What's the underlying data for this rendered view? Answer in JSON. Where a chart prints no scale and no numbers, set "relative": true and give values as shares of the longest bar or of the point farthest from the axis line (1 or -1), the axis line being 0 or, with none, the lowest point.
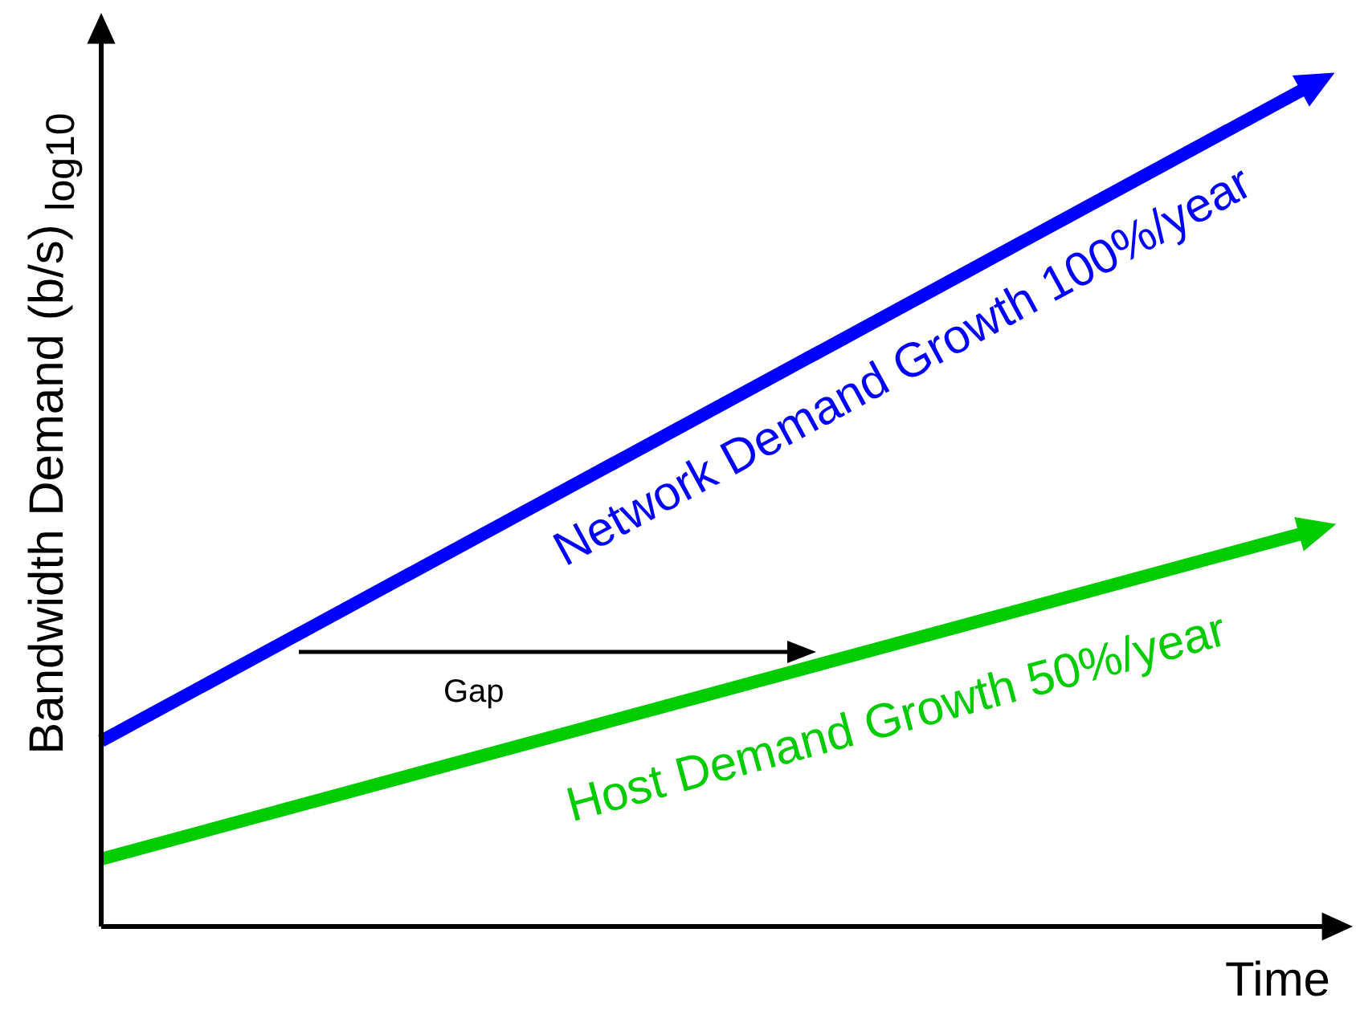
{
  "chart_data": {
    "type": "line",
    "relative": true,
    "xlabel": "Time",
    "ylabel": "Bandwidth Demand (b/s) $_{log10}$",
    "categories": [
      null,
      null
    ],
    "annotations": [
      "Gap"
    ],
    "legend": false,
    "line_style": "solid",
    "series": [
      {
        "name": "Network Demand Growth 100%/year",
        "color": "#0000ff",
        "values": [
          0.22,
          1.0
        ]
      },
      {
        "name": "Host Demand Growth 50%/year",
        "color": "#00cc00",
        "values": [
          0.08,
          0.47
        ]
      }
    ]
  }
}
